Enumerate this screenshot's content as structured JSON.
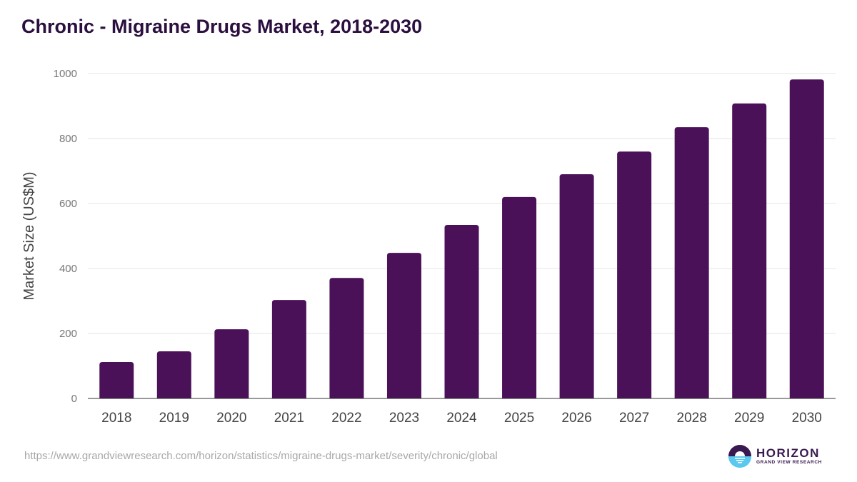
{
  "title": "Chronic - Migraine Drugs Market, 2018-2030",
  "source_url": "https://www.grandviewresearch.com/horizon/statistics/migraine-drugs-market/severity/chronic/global",
  "logo": {
    "name": "HORIZON",
    "subtitle": "GRAND VIEW RESEARCH",
    "icon": "horizon-sun-icon"
  },
  "colors": {
    "bar": "#4b1158",
    "title": "#2b0f3f",
    "grid": "#e6e6e6",
    "axis": "#333333"
  },
  "chart_data": {
    "type": "bar",
    "title": "Chronic - Migraine Drugs Market, 2018-2030",
    "xlabel": "",
    "ylabel": "Market Size (US$M)",
    "categories": [
      "2018",
      "2019",
      "2020",
      "2021",
      "2022",
      "2023",
      "2024",
      "2025",
      "2026",
      "2027",
      "2028",
      "2029",
      "2030"
    ],
    "values": [
      112,
      145,
      213,
      303,
      371,
      448,
      534,
      620,
      690,
      760,
      835,
      908,
      982
    ],
    "ylim": [
      0,
      1000
    ],
    "yticks": [
      0,
      200,
      400,
      600,
      800,
      1000
    ],
    "grid": true,
    "legend": "none"
  }
}
